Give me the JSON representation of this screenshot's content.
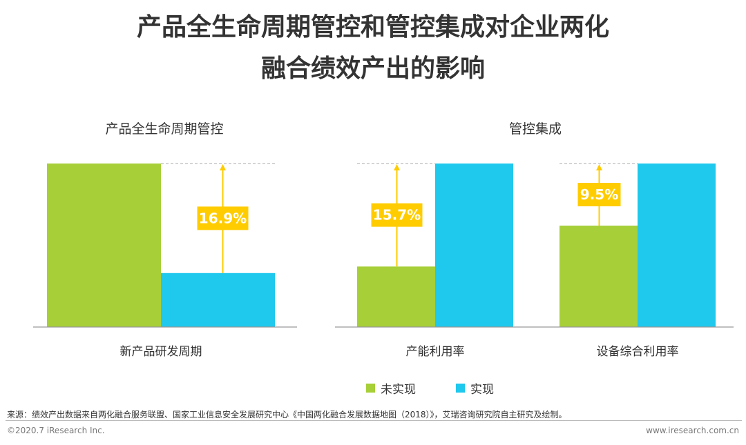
{
  "title": {
    "line1": "产品全生命周期管控和管控集成对企业两化",
    "line2": "融合绩效产出的影响"
  },
  "colors": {
    "not_realized": "#a6cf38",
    "realized": "#1fc8ed",
    "callout": "#ffcc00",
    "callout_text": "#ffffff"
  },
  "legend": {
    "not_realized": "未实现",
    "realized": "实现"
  },
  "chart_data": [
    {
      "type": "bar",
      "title": "产品全生命周期管控",
      "categories": [
        "新产品研发周期"
      ],
      "series": [
        {
          "name": "未实现",
          "values": [
            100
          ]
        },
        {
          "name": "实现",
          "values": [
            33
          ]
        }
      ],
      "annotations": [
        "16.9%"
      ],
      "ylim": [
        0,
        100
      ],
      "grid": false
    },
    {
      "type": "bar",
      "title": "管控集成",
      "categories": [
        "产能利用率",
        "设备综合利用率"
      ],
      "series": [
        {
          "name": "未实现",
          "values": [
            37,
            62
          ]
        },
        {
          "name": "实现",
          "values": [
            100,
            100
          ]
        }
      ],
      "annotations": [
        "15.7%",
        "9.5%"
      ],
      "ylim": [
        0,
        100
      ],
      "grid": false
    }
  ],
  "footer": {
    "source": "来源：绩效产出数据来自两化融合服务联盟、国家工业信息安全发展研究中心《中国两化融合发展数据地图（2018）》，艾瑞咨询研究院自主研究及绘制。",
    "copyright": "©2020.7 iResearch Inc.",
    "website": "www.iresearch.com.cn"
  }
}
